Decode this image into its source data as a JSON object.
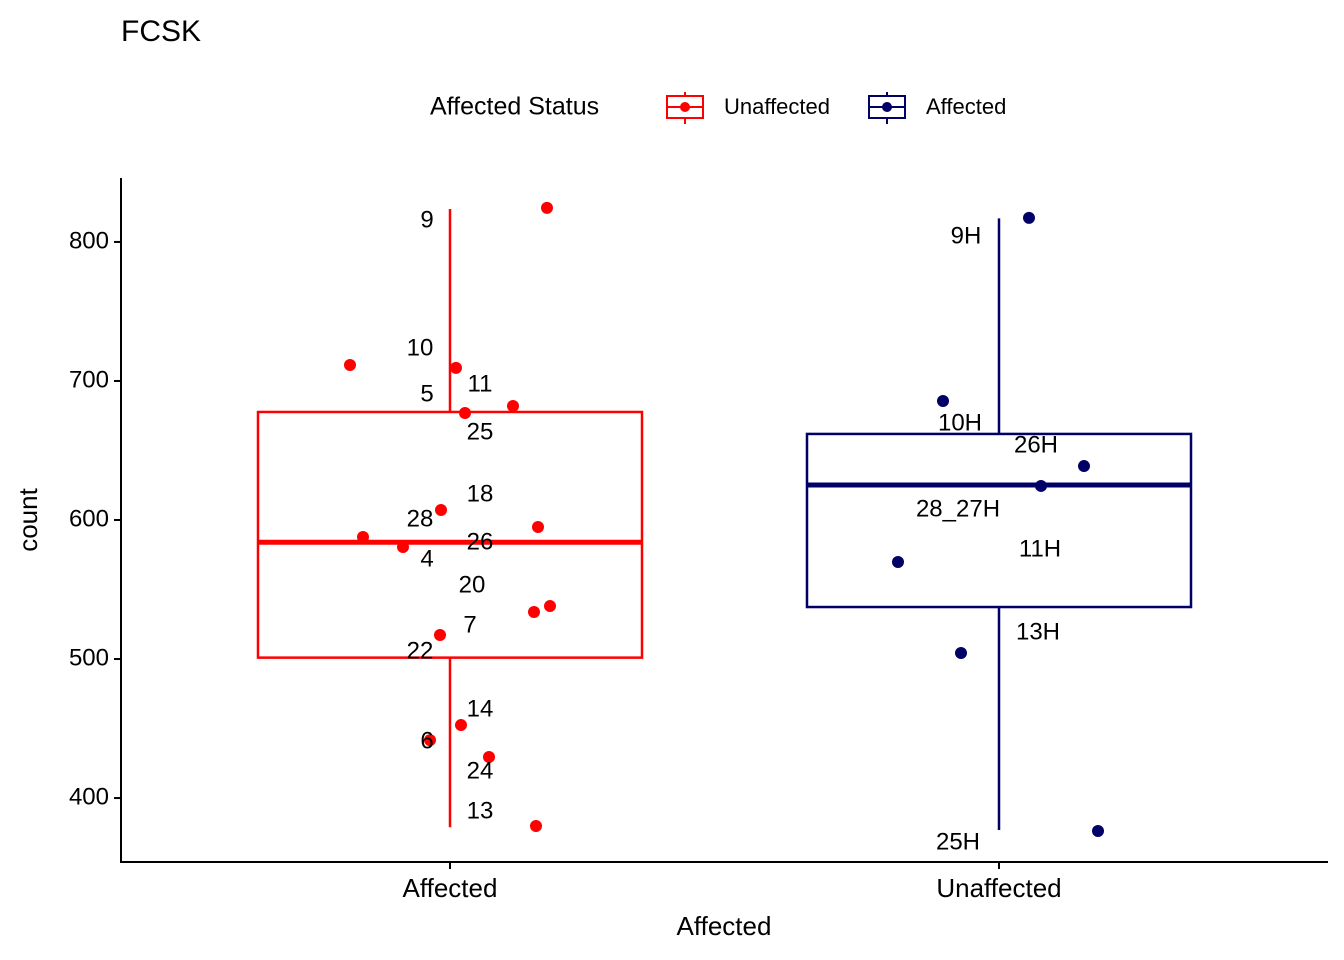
{
  "chart_data": {
    "type": "box",
    "title": "FCSK",
    "x_label": "Affected",
    "y_label": "count",
    "legend_title": "Affected Status",
    "legend": "top",
    "categories": [
      "Affected",
      "Unaffected"
    ],
    "ylim": [
      354,
      846
    ],
    "yticks": [
      400,
      500,
      600,
      700,
      800
    ],
    "series": [
      {
        "name": "Unaffected",
        "color": "#ff0000",
        "whisker_low": 379,
        "q1": 501,
        "median": 584,
        "q3": 677.7,
        "whisker_high": 823.7,
        "points": [
          824.5,
          711.5,
          709.4,
          682,
          677,
          607.2,
          595,
          587.8,
          580.6,
          538.1,
          533.8,
          517.3,
          452.5,
          441.7,
          429.5,
          379.9
        ],
        "point_labels": [
          "9",
          "10",
          "11",
          "5",
          "25",
          "18",
          "28",
          "26",
          "4",
          "20",
          "7",
          "22",
          "14",
          "6",
          "24",
          "13"
        ]
      },
      {
        "name": "Affected",
        "color": "#000066",
        "whisker_low": 377,
        "q1": 537.4,
        "median": 625.2,
        "q3": 661.9,
        "whisker_high": 817,
        "points": [
          817.3,
          685.6,
          638.8,
          624.5,
          569.8,
          504.3,
          376.3
        ],
        "point_labels": [
          "9H",
          "10H",
          "26H",
          "28_27H",
          "11H",
          "13H",
          "25H"
        ]
      }
    ]
  }
}
